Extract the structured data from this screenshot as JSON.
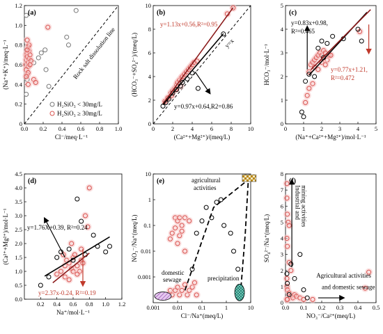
{
  "colors": {
    "black_marker": "#000000",
    "red_marker": "#d9534f",
    "pink_glow": "#f6c7c7",
    "red_line": "#8b1a1a",
    "black_line": "#000000",
    "arrow_red": "#c0392b"
  },
  "chart_data": [
    {
      "id": "a",
      "type": "scatter",
      "panel_label": "(a)",
      "xlabel": "Cl⁻/meq·L⁻¹",
      "ylabel": "(Na⁺+K⁺)/meq·L⁻¹",
      "xlim": [
        0,
        1.0
      ],
      "ylim": [
        0,
        1.2
      ],
      "xticks": [
        "0.0",
        "0.2",
        "0.4",
        "0.6",
        "0.8",
        "1.0"
      ],
      "yticks": [
        "0",
        "0.2",
        "0.4",
        "0.6",
        "0.8",
        "1.0",
        "1.2"
      ],
      "ref_line_label": "Rock salt dissolution line",
      "legend": [
        {
          "label": "H₂SiO₃ < 30mg/L",
          "marker": "gray"
        },
        {
          "label": "H₂SiO₃ ≥ 30mg/L",
          "marker": "red"
        }
      ],
      "series": [
        {
          "group": "gray",
          "x": [
            0.02,
            0.02,
            0.03,
            0.1,
            0.15,
            0.18,
            0.22,
            0.23,
            0.26,
            0.45,
            0.47,
            0.55
          ],
          "y": [
            1.1,
            0.3,
            0.45,
            0.62,
            0.67,
            0.72,
            0.75,
            0.55,
            0.38,
            0.88,
            0.8,
            1.15
          ]
        },
        {
          "group": "red",
          "x": [
            0.01,
            0.02,
            0.02,
            0.03,
            0.03,
            0.04,
            0.04,
            0.05,
            0.05,
            0.02,
            0.03,
            0.04,
            0.06,
            0.07,
            0.05,
            0.04,
            0.02,
            0.03,
            0.06,
            0.1,
            0.12,
            0.25,
            0.04,
            0.03
          ],
          "y": [
            0.6,
            0.65,
            0.7,
            0.72,
            0.68,
            0.62,
            0.58,
            0.66,
            0.74,
            0.55,
            0.5,
            0.78,
            0.7,
            0.64,
            0.8,
            0.52,
            0.48,
            0.85,
            0.6,
            0.45,
            0.42,
            0.98,
            0.4,
            0.75
          ]
        }
      ]
    },
    {
      "id": "b",
      "type": "scatter",
      "panel_label": "(b)",
      "xlabel": "(Ca²⁺+Mg²⁺)/(meq/L)",
      "ylabel": "(HCO₃⁻+SO₄²⁻)/(meq/L)",
      "xlim": [
        0,
        10
      ],
      "ylim": [
        0,
        10
      ],
      "xticks": [
        "0",
        "2",
        "4",
        "6",
        "8",
        "10"
      ],
      "yticks": [
        "0",
        "2",
        "4",
        "6",
        "8",
        "10"
      ],
      "ref_line_label": "y=x",
      "fits": [
        {
          "label": "y=1.13x+0.56,R²=0.95",
          "slope": 1.13,
          "intercept": 0.56,
          "color": "red"
        },
        {
          "label": "y=0.97x+0.64,R2=0.86",
          "slope": 0.97,
          "intercept": 0.64,
          "color": "black"
        }
      ],
      "series": [
        {
          "group": "red",
          "x": [
            1.2,
            1.5,
            1.8,
            2.0,
            2.2,
            2.4,
            2.5,
            2.7,
            2.9,
            3.0,
            3.2,
            3.4,
            3.6,
            3.8,
            4.0,
            4.2,
            4.5,
            1.9,
            2.3,
            2.8,
            7.6,
            8.2
          ],
          "y": [
            1.9,
            2.2,
            2.6,
            2.8,
            3.0,
            3.3,
            3.5,
            3.7,
            3.9,
            4.0,
            4.2,
            4.4,
            4.6,
            4.8,
            5.0,
            5.2,
            5.3,
            2.4,
            2.9,
            3.2,
            9.3,
            9.8
          ]
        },
        {
          "group": "black",
          "x": [
            1.0,
            1.3,
            1.6,
            2.0,
            2.4,
            2.8,
            3.0,
            3.5,
            4.0,
            4.6,
            7.2
          ],
          "y": [
            1.5,
            1.8,
            2.1,
            2.6,
            2.9,
            3.2,
            3.5,
            3.8,
            4.3,
            3.0,
            7.6
          ]
        }
      ]
    },
    {
      "id": "c",
      "type": "scatter",
      "panel_label": "(c)",
      "xlabel": "(Na⁺+Ca²⁺+Mg²⁺)/mol·L⁻¹",
      "ylabel": "HCO₃⁻/mol·L⁻¹",
      "xlim": [
        0,
        5
      ],
      "ylim": [
        0,
        5
      ],
      "xticks": [
        "0",
        "1",
        "2",
        "3",
        "4",
        "5"
      ],
      "yticks": [
        "0",
        "1",
        "2",
        "3",
        "4",
        "5"
      ],
      "fits": [
        {
          "label": "y=0.83x+0.98,",
          "label2": "R²=0.465",
          "slope": 0.83,
          "intercept": 0.98,
          "color": "black"
        },
        {
          "label": "y=0.77x+1.21,",
          "label2": "R²=0.472",
          "slope": 0.77,
          "intercept": 1.21,
          "color": "red"
        }
      ],
      "series": [
        {
          "group": "red",
          "x": [
            1.3,
            1.4,
            1.5,
            1.6,
            1.7,
            1.8,
            1.9,
            2.0,
            2.1,
            2.2,
            2.3,
            2.4,
            1.6,
            1.8,
            2.0,
            2.2,
            1.5,
            1.2,
            1.1,
            1.3,
            2.5,
            4.1
          ],
          "y": [
            2.2,
            2.5,
            2.6,
            2.7,
            2.8,
            2.9,
            3.0,
            2.9,
            3.1,
            3.0,
            2.7,
            2.9,
            2.4,
            2.3,
            2.6,
            2.5,
            1.7,
            1.2,
            0.9,
            1.5,
            2.9,
            3.9
          ]
        },
        {
          "group": "black",
          "x": [
            0.9,
            1.0,
            1.1,
            1.3,
            1.6,
            1.8,
            2.0,
            2.1,
            2.3,
            2.6,
            3.2,
            4.0,
            4.2
          ],
          "y": [
            0.5,
            0.3,
            1.8,
            2.1,
            2.0,
            3.2,
            3.5,
            2.8,
            3.4,
            3.7,
            3.6,
            4.0,
            3.5
          ]
        }
      ]
    },
    {
      "id": "d",
      "type": "scatter",
      "panel_label": "(d)",
      "xlabel": "Na⁺/mol·L⁻¹",
      "ylabel": "(Ca²⁺+Mg²⁺)/mol·L⁻¹",
      "xlim": [
        0.0,
        1.2
      ],
      "ylim": [
        0.0,
        4.5
      ],
      "xticks": [
        "0.2",
        "0.4",
        "0.6",
        "0.8",
        "1.0",
        "1.2"
      ],
      "yticks": [
        "0.0",
        "0.5",
        "1.0",
        "1.5",
        "2.0",
        "2.5",
        "3.0",
        "3.5",
        "4.0",
        "4.5"
      ],
      "fits": [
        {
          "label": "y=1.76X+0.39, R²=0.24",
          "slope": 1.76,
          "intercept": 0.39,
          "color": "black"
        },
        {
          "label": "y=2.37x-0.24, R²=0.19",
          "slope": 2.37,
          "intercept": -0.24,
          "color": "red"
        }
      ],
      "series": [
        {
          "group": "red",
          "x": [
            0.4,
            0.45,
            0.5,
            0.52,
            0.55,
            0.58,
            0.6,
            0.62,
            0.65,
            0.68,
            0.7,
            0.72,
            0.75,
            0.5,
            0.55,
            0.6,
            0.65,
            0.48,
            0.7,
            0.78,
            0.8,
            0.58
          ],
          "y": [
            0.9,
            1.0,
            1.2,
            1.4,
            1.3,
            1.1,
            1.5,
            1.6,
            1.2,
            1.0,
            1.4,
            1.3,
            3.0,
            0.8,
            0.7,
            1.0,
            0.9,
            1.6,
            1.8,
            2.6,
            4.0,
            2.0
          ]
        },
        {
          "group": "black",
          "x": [
            0.2,
            0.3,
            0.4,
            0.45,
            0.55,
            0.6,
            0.65,
            0.7,
            0.75,
            0.85,
            0.9,
            1.0,
            1.05
          ],
          "y": [
            0.5,
            0.8,
            1.5,
            1.7,
            1.8,
            1.4,
            3.6,
            2.8,
            1.6,
            2.3,
            1.9,
            1.7,
            1.9
          ]
        }
      ]
    },
    {
      "id": "e",
      "type": "scatter",
      "panel_label": "(e)",
      "xlabel": "Cl⁻/Na⁺(meq/L)",
      "ylabel": "NO₃⁻/Na⁺(meq/L)",
      "scale": "log",
      "xlim": [
        0.001,
        10
      ],
      "ylim": [
        0.0001,
        10
      ],
      "xticks": [
        "0.001",
        "0.01",
        "0.1",
        "1",
        "10"
      ],
      "yticks": [
        "0.001",
        "0.01",
        "0.1",
        "1",
        "10"
      ],
      "annotations": [
        "agricultural",
        "activities",
        "domestic",
        "sewage",
        "precipitation"
      ],
      "series": [
        {
          "group": "red",
          "x": [
            0.004,
            0.005,
            0.006,
            0.008,
            0.01,
            0.012,
            0.015,
            0.02,
            0.025,
            0.03,
            0.04,
            0.05,
            0.06,
            0.008,
            0.01,
            0.012,
            0.015,
            0.02,
            0.03,
            0.005,
            0.006,
            0.008,
            0.01,
            0.012,
            0.015,
            0.02
          ],
          "y": [
            0.0002,
            0.0003,
            0.0002,
            0.0003,
            0.0004,
            0.0002,
            0.0003,
            0.0005,
            0.0002,
            0.0003,
            0.0004,
            0.0006,
            0.0002,
            0.2,
            0.15,
            0.2,
            0.1,
            0.2,
            0.15,
            0.03,
            0.05,
            0.08,
            0.02,
            0.04,
            0.06,
            0.01
          ]
        },
        {
          "group": "black",
          "x": [
            0.04,
            0.06,
            0.1,
            0.15,
            0.25,
            0.4,
            0.6,
            0.8,
            1.5,
            2.0,
            3.0
          ],
          "y": [
            0.002,
            0.05,
            0.15,
            0.5,
            0.2,
            0.8,
            1.0,
            0.1,
            0.05,
            0.01,
            0.002
          ]
        }
      ]
    },
    {
      "id": "f",
      "type": "scatter",
      "panel_label": "(f)",
      "xlabel": "NO₃⁻/Ca²⁺(meq/L)",
      "ylabel": "SO₄²⁻/Na⁺(meq/L)",
      "xlim": [
        0.0,
        0.5
      ],
      "ylim": [
        0,
        8
      ],
      "xticks": [
        "0.0",
        "0.1",
        "0.2",
        "0.3",
        "0.4",
        "0.5"
      ],
      "yticks": [
        "0",
        "1",
        "2",
        "3",
        "4",
        "5",
        "6",
        "7",
        "8"
      ],
      "annotations": [
        "Industrial and",
        "mining activities",
        "Agricultural activities",
        "and domestic sewage"
      ],
      "series": [
        {
          "group": "red",
          "x": [
            0.0,
            0.005,
            0.01,
            0.015,
            0.02,
            0.0,
            0.01,
            0.02,
            0.03,
            0.0,
            0.005,
            0.01,
            0.02,
            0.03,
            0.04,
            0.05,
            0.0,
            0.01,
            0.06,
            0.08,
            0.1,
            0.15,
            0.46,
            0.44
          ],
          "y": [
            7.4,
            6.5,
            5.5,
            5.0,
            4.8,
            4.0,
            3.5,
            2.5,
            2.0,
            1.5,
            1.0,
            0.8,
            0.6,
            0.4,
            0.3,
            0.5,
            0.2,
            0.2,
            0.4,
            0.3,
            0.2,
            0.2,
            1.9,
            0.9
          ]
        },
        {
          "group": "black",
          "x": [
            0.0,
            0.01,
            0.02,
            0.05,
            0.08,
            0.1,
            0.12,
            0.03
          ],
          "y": [
            1.8,
            1.2,
            0.5,
            1.5,
            3.0,
            0.8,
            0.3,
            2.4
          ]
        }
      ]
    }
  ]
}
